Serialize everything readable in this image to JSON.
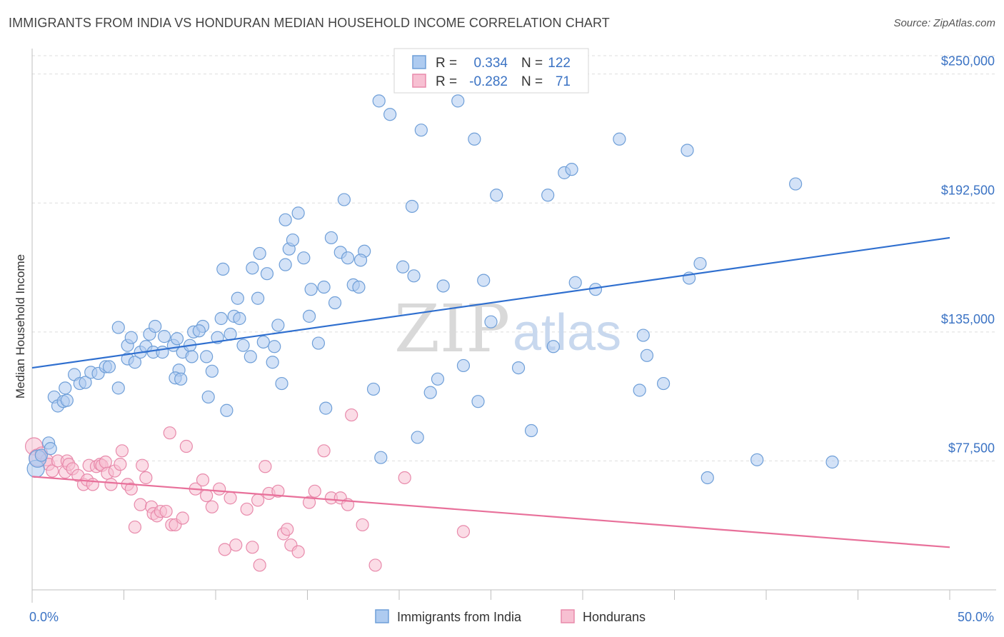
{
  "header": {
    "title": "IMMIGRANTS FROM INDIA VS HONDURAN MEDIAN HOUSEHOLD INCOME CORRELATION CHART",
    "source": "Source: ZipAtlas.com"
  },
  "watermark": {
    "part1": "ZIP",
    "part2": "atlas"
  },
  "legend_box": {
    "rows": [
      {
        "r_label": "R =",
        "r_value": "0.334",
        "n_label": "N =",
        "n_value": "122"
      },
      {
        "r_label": "R =",
        "r_value": "-0.282",
        "n_label": "N =",
        "n_value": "71"
      }
    ]
  },
  "colors": {
    "india_fill": "#aecbf0",
    "india_stroke": "#6f9fd8",
    "india_line": "#2f6fcf",
    "hond_fill": "#f7c0d2",
    "hond_stroke": "#e88aab",
    "hond_line": "#e8709a",
    "grid": "#dddddd",
    "axis_label": "#3b73c4"
  },
  "chart_data": {
    "type": "scatter",
    "title": "IMMIGRANTS FROM INDIA VS HONDURAN MEDIAN HOUSEHOLD INCOME CORRELATION CHART",
    "ylabel": "Median Household Income",
    "xlim": [
      0,
      50
    ],
    "ylim": [
      20000,
      262000
    ],
    "y_ticks": [
      {
        "value": 77500,
        "label": "$77,500"
      },
      {
        "value": 135000,
        "label": "$135,000"
      },
      {
        "value": 192500,
        "label": "$192,500"
      },
      {
        "value": 250000,
        "label": "$250,000"
      }
    ],
    "x_tick_labels": [
      {
        "value": 0,
        "label": "0.0%"
      },
      {
        "value": 50,
        "label": "50.0%"
      }
    ],
    "x_minor_ticks": [
      0,
      5,
      10,
      15,
      20,
      25,
      30,
      35,
      40,
      45,
      50
    ],
    "grid": true,
    "series": [
      {
        "name": "Immigrants from India",
        "r": 0.334,
        "n": 122,
        "trend": {
          "x": [
            0,
            50
          ],
          "y": [
            119000,
            177000
          ]
        },
        "points": [
          [
            0.2,
            74000
          ],
          [
            0.3,
            78500
          ],
          [
            0.5,
            80000
          ],
          [
            0.9,
            85500
          ],
          [
            1.0,
            83000
          ],
          [
            1.2,
            106000
          ],
          [
            1.4,
            102000
          ],
          [
            1.7,
            104000
          ],
          [
            1.9,
            104500
          ],
          [
            1.8,
            110000
          ],
          [
            2.3,
            116000
          ],
          [
            2.6,
            112000
          ],
          [
            2.9,
            112500
          ],
          [
            3.2,
            117000
          ],
          [
            3.6,
            116500
          ],
          [
            4.0,
            119500
          ],
          [
            4.2,
            119500
          ],
          [
            4.7,
            110000
          ],
          [
            5.2,
            123000
          ],
          [
            5.6,
            121500
          ],
          [
            4.7,
            137000
          ],
          [
            5.2,
            129000
          ],
          [
            5.4,
            132500
          ],
          [
            5.9,
            126000
          ],
          [
            6.2,
            128500
          ],
          [
            6.4,
            134000
          ],
          [
            6.6,
            126000
          ],
          [
            6.7,
            137500
          ],
          [
            7.1,
            126000
          ],
          [
            7.2,
            133000
          ],
          [
            7.7,
            129000
          ],
          [
            7.9,
            132000
          ],
          [
            8.2,
            126000
          ],
          [
            8.0,
            118000
          ],
          [
            7.8,
            114500
          ],
          [
            8.1,
            114000
          ],
          [
            8.6,
            129000
          ],
          [
            8.7,
            124000
          ],
          [
            8.8,
            135000
          ],
          [
            9.3,
            137500
          ],
          [
            9.1,
            135500
          ],
          [
            9.5,
            124000
          ],
          [
            9.6,
            106000
          ],
          [
            9.8,
            117500
          ],
          [
            10.1,
            132500
          ],
          [
            10.4,
            163000
          ],
          [
            10.3,
            141000
          ],
          [
            10.6,
            100000
          ],
          [
            10.8,
            134000
          ],
          [
            11.0,
            142000
          ],
          [
            11.3,
            141000
          ],
          [
            11.2,
            150000
          ],
          [
            11.5,
            129000
          ],
          [
            11.9,
            124000
          ],
          [
            12.0,
            163500
          ],
          [
            12.3,
            150000
          ],
          [
            12.4,
            170000
          ],
          [
            12.6,
            130500
          ],
          [
            12.8,
            161000
          ],
          [
            13.1,
            121500
          ],
          [
            13.2,
            128500
          ],
          [
            13.4,
            138000
          ],
          [
            13.6,
            112000
          ],
          [
            13.8,
            185000
          ],
          [
            13.8,
            165000
          ],
          [
            14.0,
            172000
          ],
          [
            14.2,
            176000
          ],
          [
            14.5,
            188000
          ],
          [
            14.8,
            168000
          ],
          [
            15.1,
            142000
          ],
          [
            15.2,
            154000
          ],
          [
            15.6,
            130000
          ],
          [
            15.9,
            155000
          ],
          [
            16.0,
            101000
          ],
          [
            16.3,
            177000
          ],
          [
            16.5,
            148000
          ],
          [
            16.8,
            170500
          ],
          [
            17.0,
            194000
          ],
          [
            17.2,
            168000
          ],
          [
            17.5,
            156000
          ],
          [
            17.8,
            155000
          ],
          [
            18.1,
            171000
          ],
          [
            17.9,
            167000
          ],
          [
            18.6,
            109500
          ],
          [
            18.9,
            238000
          ],
          [
            19.0,
            79000
          ],
          [
            19.5,
            232000
          ],
          [
            20.2,
            164000
          ],
          [
            20.8,
            160000
          ],
          [
            20.7,
            191000
          ],
          [
            21.2,
            225000
          ],
          [
            21.0,
            88000
          ],
          [
            21.7,
            108000
          ],
          [
            22.1,
            114000
          ],
          [
            22.4,
            155500
          ],
          [
            23.2,
            238000
          ],
          [
            23.5,
            120000
          ],
          [
            24.1,
            221000
          ],
          [
            24.3,
            104000
          ],
          [
            24.6,
            158000
          ],
          [
            25.0,
            139500
          ],
          [
            25.3,
            196000
          ],
          [
            26.5,
            119000
          ],
          [
            27.2,
            91000
          ],
          [
            28.1,
            196000
          ],
          [
            28.4,
            128500
          ],
          [
            29.0,
            206000
          ],
          [
            29.4,
            207500
          ],
          [
            29.6,
            157000
          ],
          [
            30.7,
            154000
          ],
          [
            32.0,
            221000
          ],
          [
            33.1,
            109000
          ],
          [
            33.3,
            133500
          ],
          [
            33.5,
            124500
          ],
          [
            34.4,
            112000
          ],
          [
            35.7,
            216000
          ],
          [
            35.8,
            159000
          ],
          [
            36.4,
            165500
          ],
          [
            36.8,
            70000
          ],
          [
            39.5,
            78000
          ],
          [
            41.6,
            201000
          ],
          [
            43.6,
            77000
          ]
        ]
      },
      {
        "name": "Hondurans",
        "r": -0.282,
        "n": 71,
        "trend": {
          "x": [
            0,
            50
          ],
          "y": [
            70500,
            39000
          ]
        },
        "points": [
          [
            0.1,
            84000
          ],
          [
            0.3,
            79000
          ],
          [
            0.5,
            81000
          ],
          [
            0.8,
            78000
          ],
          [
            0.9,
            76000
          ],
          [
            1.1,
            73000
          ],
          [
            1.4,
            77500
          ],
          [
            1.8,
            72500
          ],
          [
            1.9,
            77500
          ],
          [
            2.0,
            76000
          ],
          [
            2.2,
            74000
          ],
          [
            2.5,
            71000
          ],
          [
            2.8,
            67000
          ],
          [
            3.0,
            69000
          ],
          [
            3.1,
            75500
          ],
          [
            3.3,
            67000
          ],
          [
            3.5,
            75000
          ],
          [
            3.7,
            76000
          ],
          [
            3.8,
            75500
          ],
          [
            4.0,
            77000
          ],
          [
            4.1,
            72000
          ],
          [
            4.3,
            67000
          ],
          [
            4.5,
            73000
          ],
          [
            4.8,
            76000
          ],
          [
            4.9,
            82000
          ],
          [
            5.2,
            67000
          ],
          [
            5.4,
            65000
          ],
          [
            5.6,
            48000
          ],
          [
            5.9,
            58000
          ],
          [
            6.0,
            75500
          ],
          [
            6.2,
            70000
          ],
          [
            6.5,
            57000
          ],
          [
            6.6,
            54000
          ],
          [
            6.8,
            53000
          ],
          [
            7.0,
            55000
          ],
          [
            7.3,
            55000
          ],
          [
            7.6,
            49000
          ],
          [
            7.5,
            90000
          ],
          [
            7.8,
            49000
          ],
          [
            8.2,
            52000
          ],
          [
            8.4,
            84000
          ],
          [
            8.9,
            65000
          ],
          [
            9.3,
            69000
          ],
          [
            9.5,
            62000
          ],
          [
            9.8,
            57000
          ],
          [
            10.2,
            65000
          ],
          [
            10.5,
            38000
          ],
          [
            10.8,
            61000
          ],
          [
            11.1,
            40000
          ],
          [
            11.7,
            56000
          ],
          [
            12.0,
            39000
          ],
          [
            12.3,
            60000
          ],
          [
            12.4,
            31000
          ],
          [
            12.7,
            75000
          ],
          [
            12.9,
            63000
          ],
          [
            13.4,
            64000
          ],
          [
            13.7,
            45000
          ],
          [
            13.9,
            47000
          ],
          [
            14.1,
            40000
          ],
          [
            14.5,
            37000
          ],
          [
            15.1,
            59000
          ],
          [
            15.4,
            64000
          ],
          [
            15.9,
            82000
          ],
          [
            16.3,
            61000
          ],
          [
            16.8,
            61000
          ],
          [
            17.2,
            58000
          ],
          [
            17.4,
            98000
          ],
          [
            18.0,
            49000
          ],
          [
            18.7,
            31000
          ],
          [
            20.3,
            70000
          ],
          [
            23.5,
            46000
          ]
        ]
      }
    ]
  },
  "legend_bottom": [
    {
      "label": "Immigrants from India"
    },
    {
      "label": "Hondurans"
    }
  ]
}
